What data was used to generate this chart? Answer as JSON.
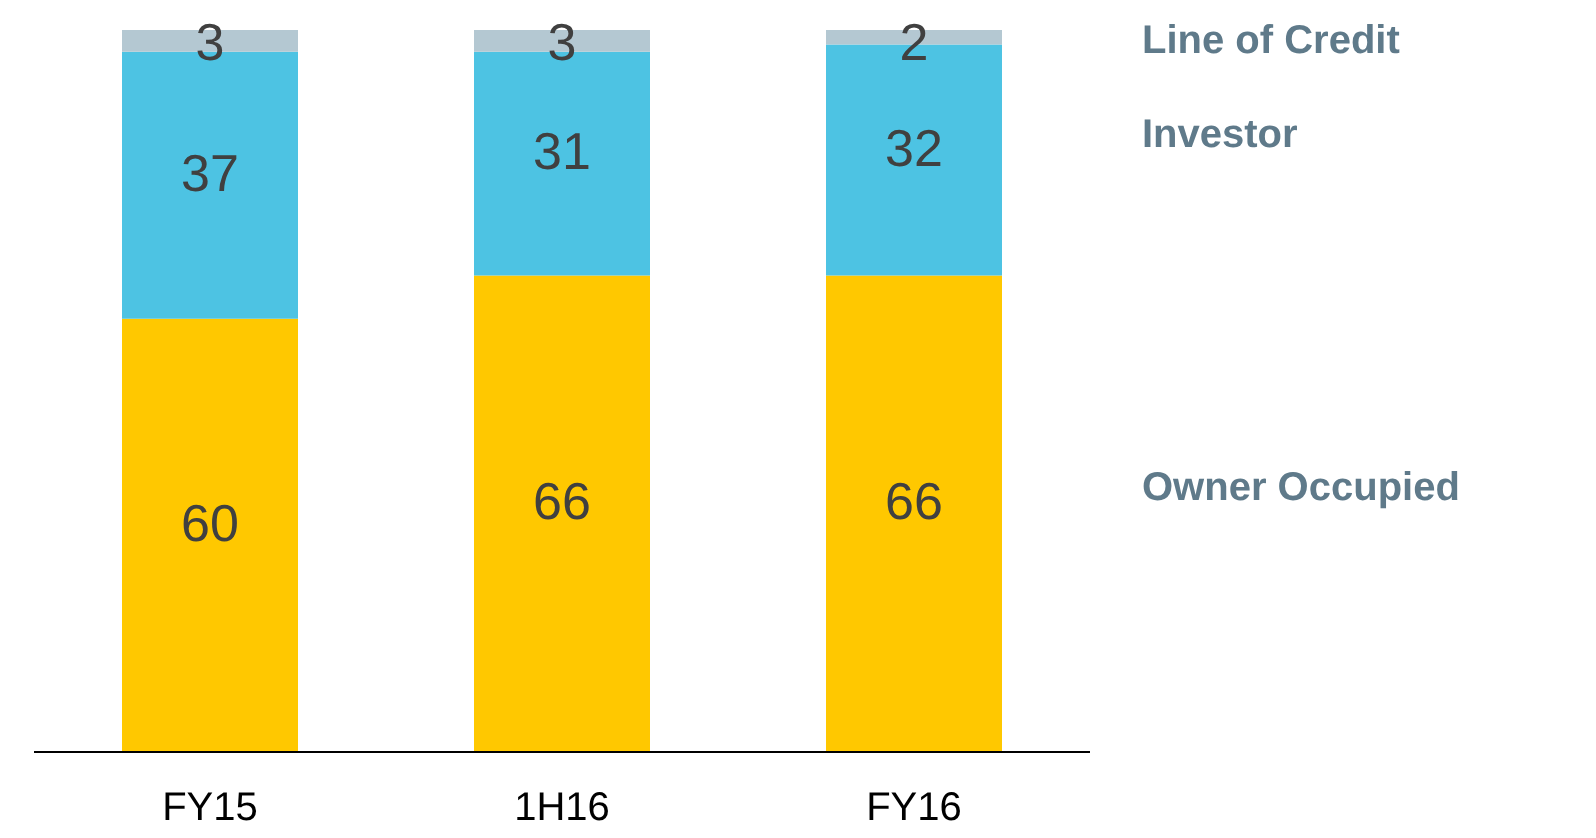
{
  "chart_data": {
    "type": "bar",
    "stacked": true,
    "data_labels": true,
    "legend": false,
    "tick_labels": "x",
    "categories": [
      "FY15",
      "1H16",
      "FY16"
    ],
    "series": [
      {
        "name": "Owner Occupied",
        "color": "#ffc800",
        "values": [
          60,
          66,
          66
        ]
      },
      {
        "name": "Investor",
        "color": "#4dc3e3",
        "values": [
          37,
          31,
          32
        ]
      },
      {
        "name": "Line of Credit",
        "color": "#b4c8d2",
        "values": [
          3,
          3,
          2
        ]
      }
    ]
  }
}
